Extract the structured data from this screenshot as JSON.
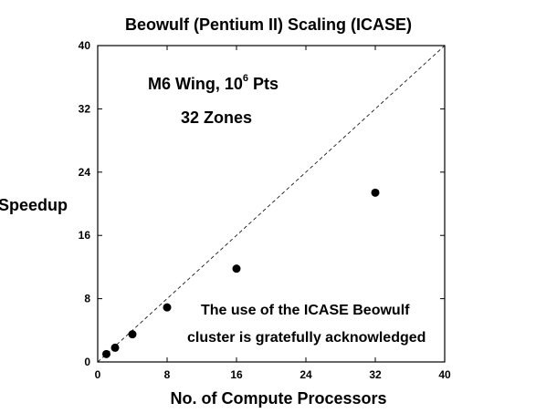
{
  "chart_data": {
    "type": "scatter",
    "title": "Beowulf (Pentium II) Scaling (ICASE)",
    "xlabel": "No. of Compute Processors",
    "ylabel": "Speedup",
    "xlim": [
      0,
      40
    ],
    "ylim": [
      0,
      40
    ],
    "xticks": [
      0,
      8,
      16,
      24,
      32,
      40
    ],
    "yticks": [
      0,
      8,
      16,
      24,
      32,
      40
    ],
    "grid": false,
    "points": [
      {
        "x": 1,
        "y": 1
      },
      {
        "x": 2,
        "y": 1.8
      },
      {
        "x": 4,
        "y": 3.5
      },
      {
        "x": 8,
        "y": 6.9
      },
      {
        "x": 16,
        "y": 11.8
      },
      {
        "x": 32,
        "y": 21.4
      }
    ],
    "reference_line": {
      "style": "dashed",
      "from": [
        0,
        0
      ],
      "to": [
        40,
        40
      ]
    },
    "annotations": {
      "case_prefix": "M6 Wing, 10",
      "case_exponent": "6",
      "case_suffix": " Pts",
      "zones": "32 Zones",
      "ack_line1": "The use of the ICASE Beowulf",
      "ack_line2": "cluster is gratefully acknowledged"
    }
  }
}
